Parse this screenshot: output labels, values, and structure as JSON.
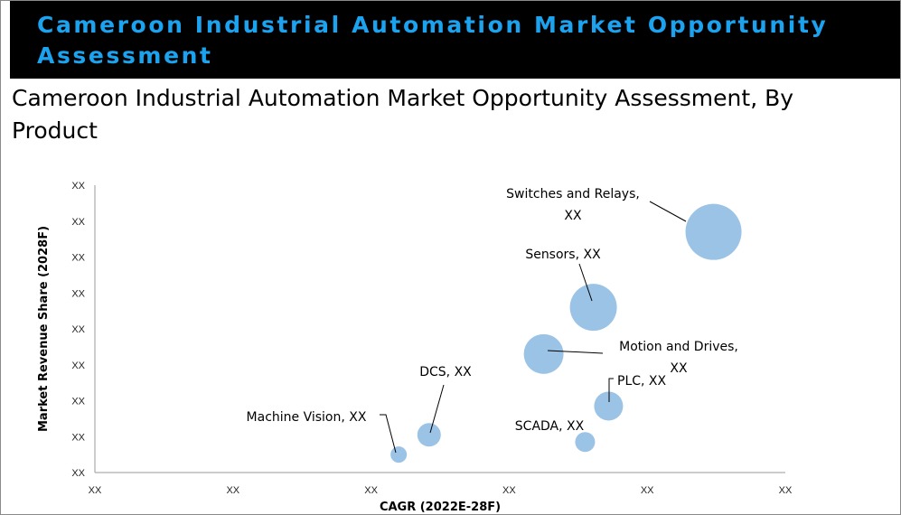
{
  "banner": {
    "title": "Cameroon Industrial Automation Market Opportunity Assessment"
  },
  "chart_data": {
    "type": "bubble",
    "title": "Cameroon Industrial Automation Market Opportunity Assessment, By Product",
    "xlabel": "CAGR (2022E-28F)",
    "ylabel": "Market Revenue Share (2028F)",
    "x_tick_labels": [
      "XX",
      "XX",
      "XX",
      "XX",
      "XX",
      "XX"
    ],
    "y_tick_labels": [
      "XX",
      "XX",
      "XX",
      "XX",
      "XX",
      "XX",
      "XX",
      "XX",
      "XX"
    ],
    "xlim": [
      0,
      5
    ],
    "ylim": [
      0,
      8
    ],
    "series": [
      {
        "name": "Switches and Relays",
        "value_label": "XX",
        "x": 4.48,
        "y": 6.7,
        "size": 31
      },
      {
        "name": "Sensors",
        "value_label": "XX",
        "x": 3.61,
        "y": 4.6,
        "size": 26
      },
      {
        "name": "Motion and Drives",
        "value_label": "XX",
        "x": 3.25,
        "y": 3.3,
        "size": 22
      },
      {
        "name": "PLC",
        "value_label": "XX",
        "x": 3.72,
        "y": 1.85,
        "size": 16
      },
      {
        "name": "SCADA",
        "value_label": "XX",
        "x": 3.55,
        "y": 0.85,
        "size": 11
      },
      {
        "name": "DCS",
        "value_label": "XX",
        "x": 2.42,
        "y": 1.05,
        "size": 13
      },
      {
        "name": "Machine Vision",
        "value_label": "XX",
        "x": 2.2,
        "y": 0.5,
        "size": 9
      }
    ]
  }
}
